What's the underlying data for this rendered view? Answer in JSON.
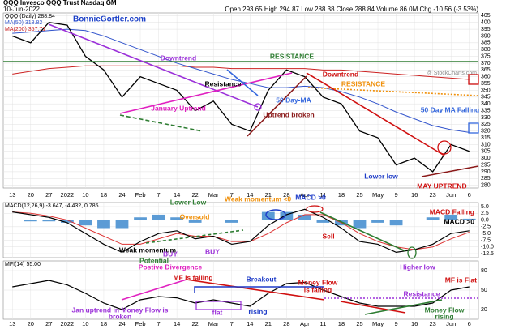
{
  "header": {
    "symbol": "QQQ Invesco QQQ Trust Nasdaq GM",
    "date": "10-Jun-2022",
    "quote": "Open 293.65 High 294.87 Low 288.38 Close 288.84 Volume 86.0M Chg -10.56 (-3.53%)",
    "site": "BonnieGortler.com",
    "credit": "@ StockCharts.com"
  },
  "chart_data": [
    {
      "type": "line",
      "legend": [
        "QQQ (Daily) 288.84",
        "MA(50) 318.82",
        "MA(200) 357.71"
      ],
      "categories": [
        "13",
        "20",
        "27",
        "2022",
        "10",
        "18",
        "24",
        "Feb",
        "7",
        "14",
        "22",
        "Mar",
        "7",
        "14",
        "21",
        "28",
        "Apr",
        "11",
        "18",
        "25",
        "May",
        "9",
        "16",
        "23",
        "Jun",
        "6"
      ],
      "series": [
        {
          "name": "QQQ",
          "color": "#000000",
          "values": [
            390,
            385,
            400,
            398,
            375,
            365,
            345,
            360,
            355,
            350,
            335,
            342,
            325,
            320,
            350,
            365,
            360,
            345,
            340,
            320,
            315,
            295,
            300,
            290,
            310,
            305
          ]
        },
        {
          "name": "MA(50)",
          "color": "#3355cc",
          "values": [
            392,
            393,
            394,
            395,
            394,
            390,
            385,
            380,
            375,
            370,
            366,
            362,
            358,
            355,
            352,
            352,
            353,
            352,
            349,
            345,
            340,
            334,
            329,
            324,
            321,
            319
          ]
        },
        {
          "name": "MA(200)",
          "color": "#cc2222",
          "values": [
            362,
            364,
            366,
            367,
            368,
            368,
            368,
            368,
            368,
            368,
            367,
            367,
            366,
            366,
            366,
            366,
            366,
            365,
            365,
            364,
            363,
            362,
            361,
            360,
            359,
            358
          ]
        }
      ],
      "ylim": [
        278,
        407
      ],
      "yticks": [
        280,
        285,
        290,
        295,
        300,
        305,
        310,
        315,
        320,
        325,
        330,
        335,
        340,
        345,
        350,
        355,
        360,
        365,
        370,
        375,
        380,
        385,
        390,
        395,
        400,
        405
      ],
      "annotations": [
        {
          "text": "Downtrend",
          "color": "#9b30d9"
        },
        {
          "text": "RESISTANCE",
          "color": "#2e7d32"
        },
        {
          "text": "Resistance",
          "color": "#000000"
        },
        {
          "text": "January Uptrend",
          "color": "#e020c0"
        },
        {
          "text": "50 Day-MA",
          "color": "#3366dd"
        },
        {
          "text": "Uptrend broken",
          "color": "#8b1a1a"
        },
        {
          "text": "Downtrend",
          "color": "#d01010"
        },
        {
          "text": "RESISTANCE",
          "color": "#f0900a"
        },
        {
          "text": "50 Day MA Falling",
          "color": "#3366dd"
        },
        {
          "text": "Lower low",
          "color": "#1e3cc8"
        },
        {
          "text": "MAY UPTREND",
          "color": "#d01010"
        }
      ]
    },
    {
      "type": "macd",
      "legend": "MACD(12,26,9) -3.647, -4.432, 0.785",
      "series": [
        {
          "name": "MACD",
          "color": "#000000",
          "values": [
            3,
            2,
            1,
            -1,
            -5,
            -9,
            -12,
            -8,
            -5,
            -4,
            -7,
            -6,
            -9,
            -8,
            -2,
            2,
            4,
            1,
            -3,
            -8,
            -9,
            -12,
            -11,
            -9,
            -5,
            -4
          ]
        },
        {
          "name": "Signal",
          "color": "#dd3333",
          "values": [
            3,
            2.5,
            1.5,
            0,
            -3,
            -6,
            -9,
            -9,
            -7,
            -5,
            -6,
            -6,
            -8,
            -8,
            -5,
            -1,
            2,
            2,
            -1,
            -5,
            -8,
            -10,
            -11,
            -10,
            -7,
            -4.5
          ]
        },
        {
          "name": "Histogram",
          "color": "#5b9bd5",
          "values": [
            0,
            -0.5,
            -0.5,
            -1,
            -2,
            -3,
            -3,
            1,
            2,
            1,
            -1,
            0,
            -1,
            0,
            3,
            3,
            2,
            -1,
            -2,
            -3,
            -1,
            -2,
            0,
            1,
            2,
            0.5
          ]
        }
      ],
      "ylim": [
        -14,
        6.5
      ],
      "yticks": [
        {
          "value": 5,
          "label": "5.0"
        },
        {
          "value": 2.5,
          "label": "2.5"
        },
        {
          "value": 0,
          "label": "0.0"
        },
        {
          "value": -2.5,
          "label": "-2.5"
        },
        {
          "value": -5,
          "label": "-5.0"
        },
        {
          "value": -7.5,
          "label": "-7.5"
        },
        {
          "value": -10,
          "label": "-10.0"
        },
        {
          "value": -12.5,
          "label": "-12.5"
        }
      ],
      "annotations": [
        {
          "text": "Lower Low",
          "color": "#2e7d32"
        },
        {
          "text": "Oversold",
          "color": "#f0900a"
        },
        {
          "text": "Weak momentum <0",
          "color": "#f0900a"
        },
        {
          "text": "MACD >0",
          "color": "#1e3cc8"
        },
        {
          "text": "Sell",
          "color": "#d01010"
        },
        {
          "text": "MACD Falling",
          "color": "#d01010"
        },
        {
          "text": "MACD >0",
          "color": "#000000"
        },
        {
          "text": "Weak momentum",
          "color": "#000000"
        },
        {
          "text": "BUY",
          "color": "#9b30d9"
        },
        {
          "text": "BUY",
          "color": "#9b30d9"
        },
        {
          "text": "Potential",
          "color": "#2e7d32"
        },
        {
          "text": "Postive Divergence",
          "color": "#e020c0"
        },
        {
          "text": "Higher low",
          "color": "#9b30d9"
        },
        {
          "text": "Positive Divergence",
          "color": "#1e3cc8"
        }
      ]
    },
    {
      "type": "mfi",
      "legend": "MFI(14) 55.00",
      "series": [
        {
          "name": "MFI",
          "color": "#000000",
          "values": [
            55,
            60,
            65,
            58,
            45,
            30,
            20,
            35,
            40,
            38,
            30,
            35,
            30,
            25,
            45,
            60,
            62,
            50,
            40,
            30,
            25,
            25,
            25,
            30,
            50,
            55
          ]
        }
      ],
      "ylim": [
        5,
        95
      ],
      "yticks": [
        80,
        50,
        20
      ],
      "annotations": [
        {
          "text": "MF is falling",
          "color": "#d01010"
        },
        {
          "text": "Breakout",
          "color": "#1e3cc8"
        },
        {
          "text": "Money Flow",
          "color": "#d01010"
        },
        {
          "text": "is falling",
          "color": "#d01010"
        },
        {
          "text": "MF is Flat",
          "color": "#d01010"
        },
        {
          "text": "Resistance",
          "color": "#9b30d9"
        },
        {
          "text": "Jan uptrend in Money Flow is",
          "color": "#9b30d9"
        },
        {
          "text": "broken",
          "color": "#9b30d9"
        },
        {
          "text": "flat",
          "color": "#9b30d9"
        },
        {
          "text": "rising",
          "color": "#1e3cc8"
        },
        {
          "text": "Money Flow",
          "color": "#2e7d32"
        },
        {
          "text": "rising",
          "color": "#2e7d32"
        }
      ]
    }
  ]
}
